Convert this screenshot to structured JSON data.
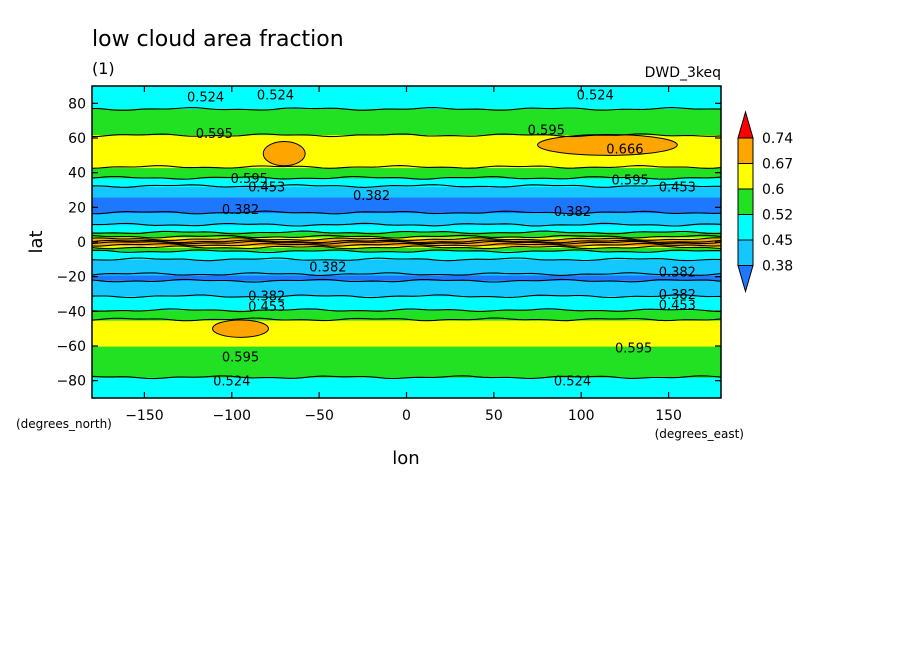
{
  "chart_data": {
    "type": "heatmap",
    "title": "low cloud area fraction",
    "subtitle": "(1)",
    "model_label": "DWD_3keq",
    "xlabel": "lon",
    "ylabel": "lat",
    "x_units": "(degrees_east)",
    "y_units": "(degrees_north)",
    "xlim": [
      -180,
      180
    ],
    "ylim": [
      -90,
      90
    ],
    "x_ticks": [
      -150,
      -100,
      -50,
      0,
      50,
      100,
      150
    ],
    "y_ticks": [
      -80,
      -60,
      -40,
      -20,
      0,
      20,
      40,
      60,
      80
    ],
    "colorbar": {
      "levels": [
        0.38,
        0.45,
        0.52,
        0.6,
        0.67,
        0.74
      ],
      "labels": [
        "0.38",
        "0.45",
        "0.52",
        "0.6",
        "0.67",
        "0.74"
      ],
      "colors": [
        "#1e78ff",
        "#14c8ff",
        "#00ffff",
        "#22e022",
        "#ffff00",
        "#ffa500",
        "#ff0000"
      ],
      "extend": "both"
    },
    "zonal_profile": [
      {
        "lat": -90,
        "value": 0.48
      },
      {
        "lat": -82,
        "value": 0.5
      },
      {
        "lat": -74,
        "value": 0.54
      },
      {
        "lat": -66,
        "value": 0.57
      },
      {
        "lat": -60,
        "value": 0.6
      },
      {
        "lat": -52,
        "value": 0.65
      },
      {
        "lat": -46,
        "value": 0.62
      },
      {
        "lat": -42,
        "value": 0.56
      },
      {
        "lat": -38,
        "value": 0.5
      },
      {
        "lat": -33,
        "value": 0.47
      },
      {
        "lat": -27,
        "value": 0.4
      },
      {
        "lat": -20,
        "value": 0.37
      },
      {
        "lat": -14,
        "value": 0.41
      },
      {
        "lat": -9,
        "value": 0.46
      },
      {
        "lat": -6,
        "value": 0.5
      },
      {
        "lat": -4,
        "value": 0.56
      },
      {
        "lat": -2,
        "value": 0.65
      },
      {
        "lat": 0,
        "value": 0.76
      },
      {
        "lat": 2,
        "value": 0.65
      },
      {
        "lat": 4,
        "value": 0.56
      },
      {
        "lat": 7,
        "value": 0.48
      },
      {
        "lat": 12,
        "value": 0.43
      },
      {
        "lat": 18,
        "value": 0.37
      },
      {
        "lat": 26,
        "value": 0.38
      },
      {
        "lat": 31,
        "value": 0.43
      },
      {
        "lat": 35,
        "value": 0.49
      },
      {
        "lat": 39,
        "value": 0.55
      },
      {
        "lat": 45,
        "value": 0.62
      },
      {
        "lat": 52,
        "value": 0.64
      },
      {
        "lat": 60,
        "value": 0.61
      },
      {
        "lat": 68,
        "value": 0.56
      },
      {
        "lat": 75,
        "value": 0.53
      },
      {
        "lat": 82,
        "value": 0.49
      },
      {
        "lat": 90,
        "value": 0.47
      }
    ],
    "contour_labels": [
      {
        "lon": -115,
        "lat": 84,
        "text": "0.524"
      },
      {
        "lon": -75,
        "lat": 85,
        "text": "0.524"
      },
      {
        "lon": 108,
        "lat": 85,
        "text": "0.524"
      },
      {
        "lon": -110,
        "lat": 63,
        "text": "0.595"
      },
      {
        "lon": 80,
        "lat": 65,
        "text": "0.595"
      },
      {
        "lon": 125,
        "lat": 54,
        "text": "0.666"
      },
      {
        "lon": -90,
        "lat": 37,
        "text": "0.595"
      },
      {
        "lon": -80,
        "lat": 32,
        "text": "0.453"
      },
      {
        "lon": 128,
        "lat": 36,
        "text": "0.595"
      },
      {
        "lon": 155,
        "lat": 32,
        "text": "0.453"
      },
      {
        "lon": -95,
        "lat": 19,
        "text": "0.382"
      },
      {
        "lon": -20,
        "lat": 27,
        "text": "0.382"
      },
      {
        "lon": 95,
        "lat": 18,
        "text": "0.382"
      },
      {
        "lon": -45,
        "lat": -14,
        "text": "0.382"
      },
      {
        "lon": 155,
        "lat": -17,
        "text": "0.382"
      },
      {
        "lon": -80,
        "lat": -31,
        "text": "0.382"
      },
      {
        "lon": 155,
        "lat": -30,
        "text": "0.382"
      },
      {
        "lon": -80,
        "lat": -37,
        "text": "0.453"
      },
      {
        "lon": 155,
        "lat": -36,
        "text": "0.453"
      },
      {
        "lon": -95,
        "lat": -66,
        "text": "0.595"
      },
      {
        "lon": 130,
        "lat": -61,
        "text": "0.595"
      },
      {
        "lon": -100,
        "lat": -80,
        "text": "0.524"
      },
      {
        "lon": 95,
        "lat": -80,
        "text": "0.524"
      }
    ],
    "high_blobs": [
      {
        "lon": -70,
        "lat": 51,
        "rlon": 12,
        "rlat": 7,
        "text": ""
      },
      {
        "lon": 115,
        "lat": 56,
        "rlon": 40,
        "rlat": 6,
        "text": ""
      },
      {
        "lon": -95,
        "lat": -50,
        "rlon": 16,
        "rlat": 5,
        "text": ""
      }
    ]
  }
}
